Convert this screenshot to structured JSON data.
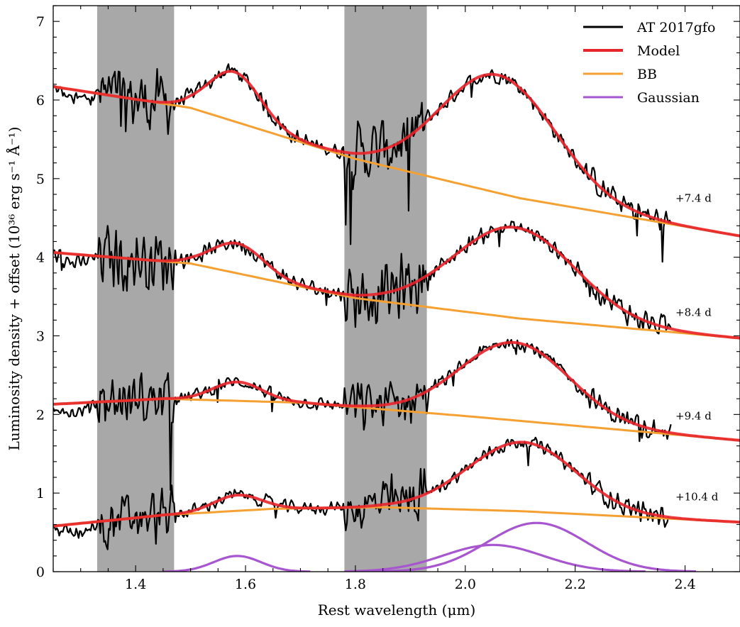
{
  "chart_data": {
    "type": "line",
    "title": "",
    "xlabel": "Rest wavelength (μm)",
    "ylabel": "Luminosity density + offset (10³⁶ erg s⁻¹ Å⁻¹)",
    "xlim": [
      1.25,
      2.5
    ],
    "ylim": [
      0,
      7.2
    ],
    "xticks": [
      1.4,
      1.6,
      1.8,
      2.0,
      2.2,
      2.4
    ],
    "xtick_labels": [
      "1.4",
      "1.6",
      "1.8",
      "2.0",
      "2.2",
      "2.4"
    ],
    "yticks": [
      0,
      1,
      2,
      3,
      4,
      5,
      6,
      7
    ],
    "ytick_labels": [
      "0",
      "1",
      "2",
      "3",
      "4",
      "5",
      "6",
      "7"
    ],
    "grid": false,
    "legend_position": "top-right",
    "colors": {
      "data": "#000000",
      "model": "#e8252b",
      "bb": "#f5a031",
      "gaussian": "#a855d0",
      "telluric_band": "#a8a8a8"
    },
    "shaded_regions": [
      [
        1.33,
        1.47
      ],
      [
        1.78,
        1.93
      ]
    ],
    "legend": [
      {
        "label": "AT 2017gfo",
        "color": "#000000"
      },
      {
        "label": "Model",
        "color": "#e8252b"
      },
      {
        "label": "BB",
        "color": "#f5a031"
      },
      {
        "label": "Gaussian",
        "color": "#a855d0"
      }
    ],
    "epochs": [
      {
        "label": "+7.4 d",
        "label_y": 4.75,
        "data_xmax": 2.375,
        "noise": 0.12,
        "bb": {
          "x": [
            1.25,
            1.5,
            1.8,
            2.1,
            2.5
          ],
          "y": [
            6.17,
            5.9,
            5.25,
            4.75,
            4.27
          ]
        },
        "gaussians": [
          {
            "center": 1.58,
            "amp": 0.63,
            "sigma": 0.048
          },
          {
            "center": 2.06,
            "amp": 1.5,
            "sigma": 0.105
          }
        ]
      },
      {
        "label": "+8.4 d",
        "label_y": 3.3,
        "data_xmax": 2.375,
        "noise": 0.12,
        "bb": {
          "x": [
            1.25,
            1.5,
            1.8,
            2.1,
            2.5
          ],
          "y": [
            4.06,
            3.92,
            3.48,
            3.22,
            2.97
          ]
        },
        "gaussians": [
          {
            "center": 1.585,
            "amp": 0.38,
            "sigma": 0.048
          },
          {
            "center": 2.09,
            "amp": 1.15,
            "sigma": 0.11
          }
        ]
      },
      {
        "label": "+9.4 d",
        "label_y": 1.98,
        "data_xmax": 2.375,
        "noise": 0.1,
        "bb": {
          "x": [
            1.25,
            1.45,
            1.7,
            2.0,
            2.5
          ],
          "y": [
            2.13,
            2.2,
            2.15,
            1.98,
            1.67
          ]
        },
        "gaussians": [
          {
            "center": 1.585,
            "amp": 0.24,
            "sigma": 0.045
          },
          {
            "center": 2.09,
            "amp": 0.99,
            "sigma": 0.1
          }
        ]
      },
      {
        "label": "+10.4 d",
        "label_y": 0.95,
        "data_xmax": 2.37,
        "noise": 0.1,
        "bb": {
          "x": [
            1.25,
            1.45,
            1.65,
            1.85,
            2.1,
            2.5
          ],
          "y": [
            0.58,
            0.72,
            0.8,
            0.82,
            0.77,
            0.63
          ]
        },
        "gaussians": [
          {
            "center": 1.585,
            "amp": 0.2,
            "sigma": 0.043
          },
          {
            "center": 2.05,
            "amp": 0.34,
            "sigma": 0.09
          },
          {
            "center": 2.13,
            "amp": 0.62,
            "sigma": 0.09
          }
        ]
      }
    ],
    "gaussian_components": [
      {
        "center": 1.585,
        "amp": 0.2,
        "sigma": 0.043,
        "xmin": 1.45,
        "xmax": 1.72
      },
      {
        "center": 2.05,
        "amp": 0.34,
        "sigma": 0.09,
        "xmin": 1.78,
        "xmax": 2.33
      },
      {
        "center": 2.13,
        "amp": 0.62,
        "sigma": 0.09,
        "xmin": 1.8,
        "xmax": 2.42
      }
    ]
  }
}
